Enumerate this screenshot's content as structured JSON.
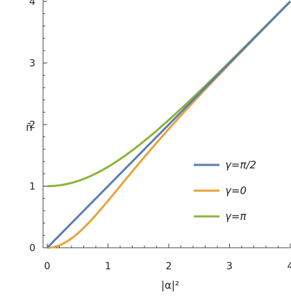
{
  "chart_data": {
    "type": "line",
    "title": "",
    "xlabel": "|α|²",
    "ylabel": "n̄",
    "xlim": [
      0,
      4
    ],
    "ylim": [
      0,
      4
    ],
    "xticks": [
      "0",
      "1",
      "2",
      "3",
      "4"
    ],
    "yticks": [
      "0",
      "1",
      "2",
      "3",
      "4"
    ],
    "grid": false,
    "legend_position": "right-center",
    "series": [
      {
        "name": "γ=π/2",
        "color": "#5B7DB1",
        "formula": "n = x",
        "x": [
          0,
          0.5,
          1,
          1.5,
          2,
          2.5,
          3,
          3.5,
          4
        ],
        "y": [
          0,
          0.5,
          1,
          1.5,
          2,
          2.5,
          3,
          3.5,
          4
        ]
      },
      {
        "name": "γ=0",
        "color": "#E8A23A",
        "formula": "n = x·tanh(x)",
        "x": [
          0,
          0.5,
          1,
          1.5,
          2,
          2.5,
          3,
          3.5,
          4
        ],
        "y": [
          0,
          0.23,
          0.76,
          1.36,
          1.93,
          2.47,
          2.99,
          3.49,
          4.0
        ]
      },
      {
        "name": "γ=π",
        "color": "#8DB33A",
        "formula": "n = x·coth(x)",
        "x": [
          0,
          0.5,
          1,
          1.5,
          2,
          2.5,
          3,
          3.5,
          4
        ],
        "y": [
          1,
          1.08,
          1.31,
          1.65,
          2.07,
          2.53,
          3.01,
          3.51,
          4.0
        ]
      }
    ]
  }
}
